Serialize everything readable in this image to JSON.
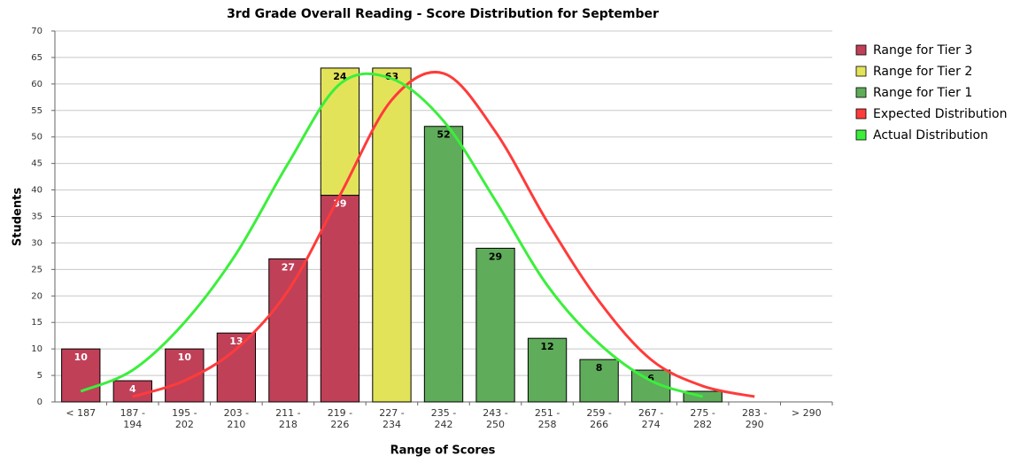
{
  "chart_data": {
    "type": "bar",
    "title": "3rd Grade Overall Reading - Score Distribution for September",
    "x_label": "Range of Scores",
    "y_label": "Students",
    "categories": [
      "< 187",
      "187 - 194",
      "195 - 202",
      "203 - 210",
      "211 - 218",
      "219 - 226",
      "227 - 234",
      "235 - 242",
      "243 - 250",
      "251 - 258",
      "259 - 266",
      "267 - 274",
      "275 - 282",
      "283 - 290",
      "> 290"
    ],
    "series": [
      {
        "name": "Range for Tier 3",
        "color": "#c04058",
        "label_color": "#ffffff",
        "kind": "bar",
        "values": [
          10,
          4,
          10,
          13,
          27,
          39,
          null,
          null,
          null,
          null,
          null,
          null,
          null,
          null,
          null
        ]
      },
      {
        "name": "Range for Tier 2",
        "color": "#e3e35a",
        "label_color": "#000000",
        "kind": "bar",
        "values": [
          null,
          null,
          null,
          null,
          null,
          24,
          63,
          null,
          null,
          null,
          null,
          null,
          null,
          null,
          null
        ]
      },
      {
        "name": "Range for Tier 1",
        "color": "#5fac5a",
        "label_color": "#000000",
        "kind": "bar",
        "values": [
          null,
          null,
          null,
          null,
          null,
          null,
          null,
          52,
          29,
          12,
          8,
          6,
          2,
          null,
          null
        ],
        "value_labels": [
          null,
          null,
          null,
          null,
          null,
          null,
          null,
          "52",
          "29",
          "12",
          "8",
          "6",
          null,
          null,
          null
        ]
      },
      {
        "name": "Expected Distribution",
        "color": "#ff3b3b",
        "kind": "line",
        "values": [
          null,
          1,
          4,
          10,
          21,
          39,
          57,
          62,
          51,
          34,
          19,
          8,
          3,
          1,
          null
        ]
      },
      {
        "name": "Actual Distribution",
        "color": "#3bef3b",
        "kind": "line",
        "values": [
          2,
          6,
          15,
          28,
          45,
          60,
          61,
          53,
          38,
          22,
          11,
          4,
          1,
          null,
          null
        ]
      }
    ],
    "ylim": [
      0,
      70
    ],
    "yticks": [
      0,
      5,
      10,
      15,
      20,
      25,
      30,
      35,
      40,
      45,
      50,
      55,
      60,
      65,
      70
    ],
    "grid": true,
    "stacked": true,
    "legend": "right"
  }
}
